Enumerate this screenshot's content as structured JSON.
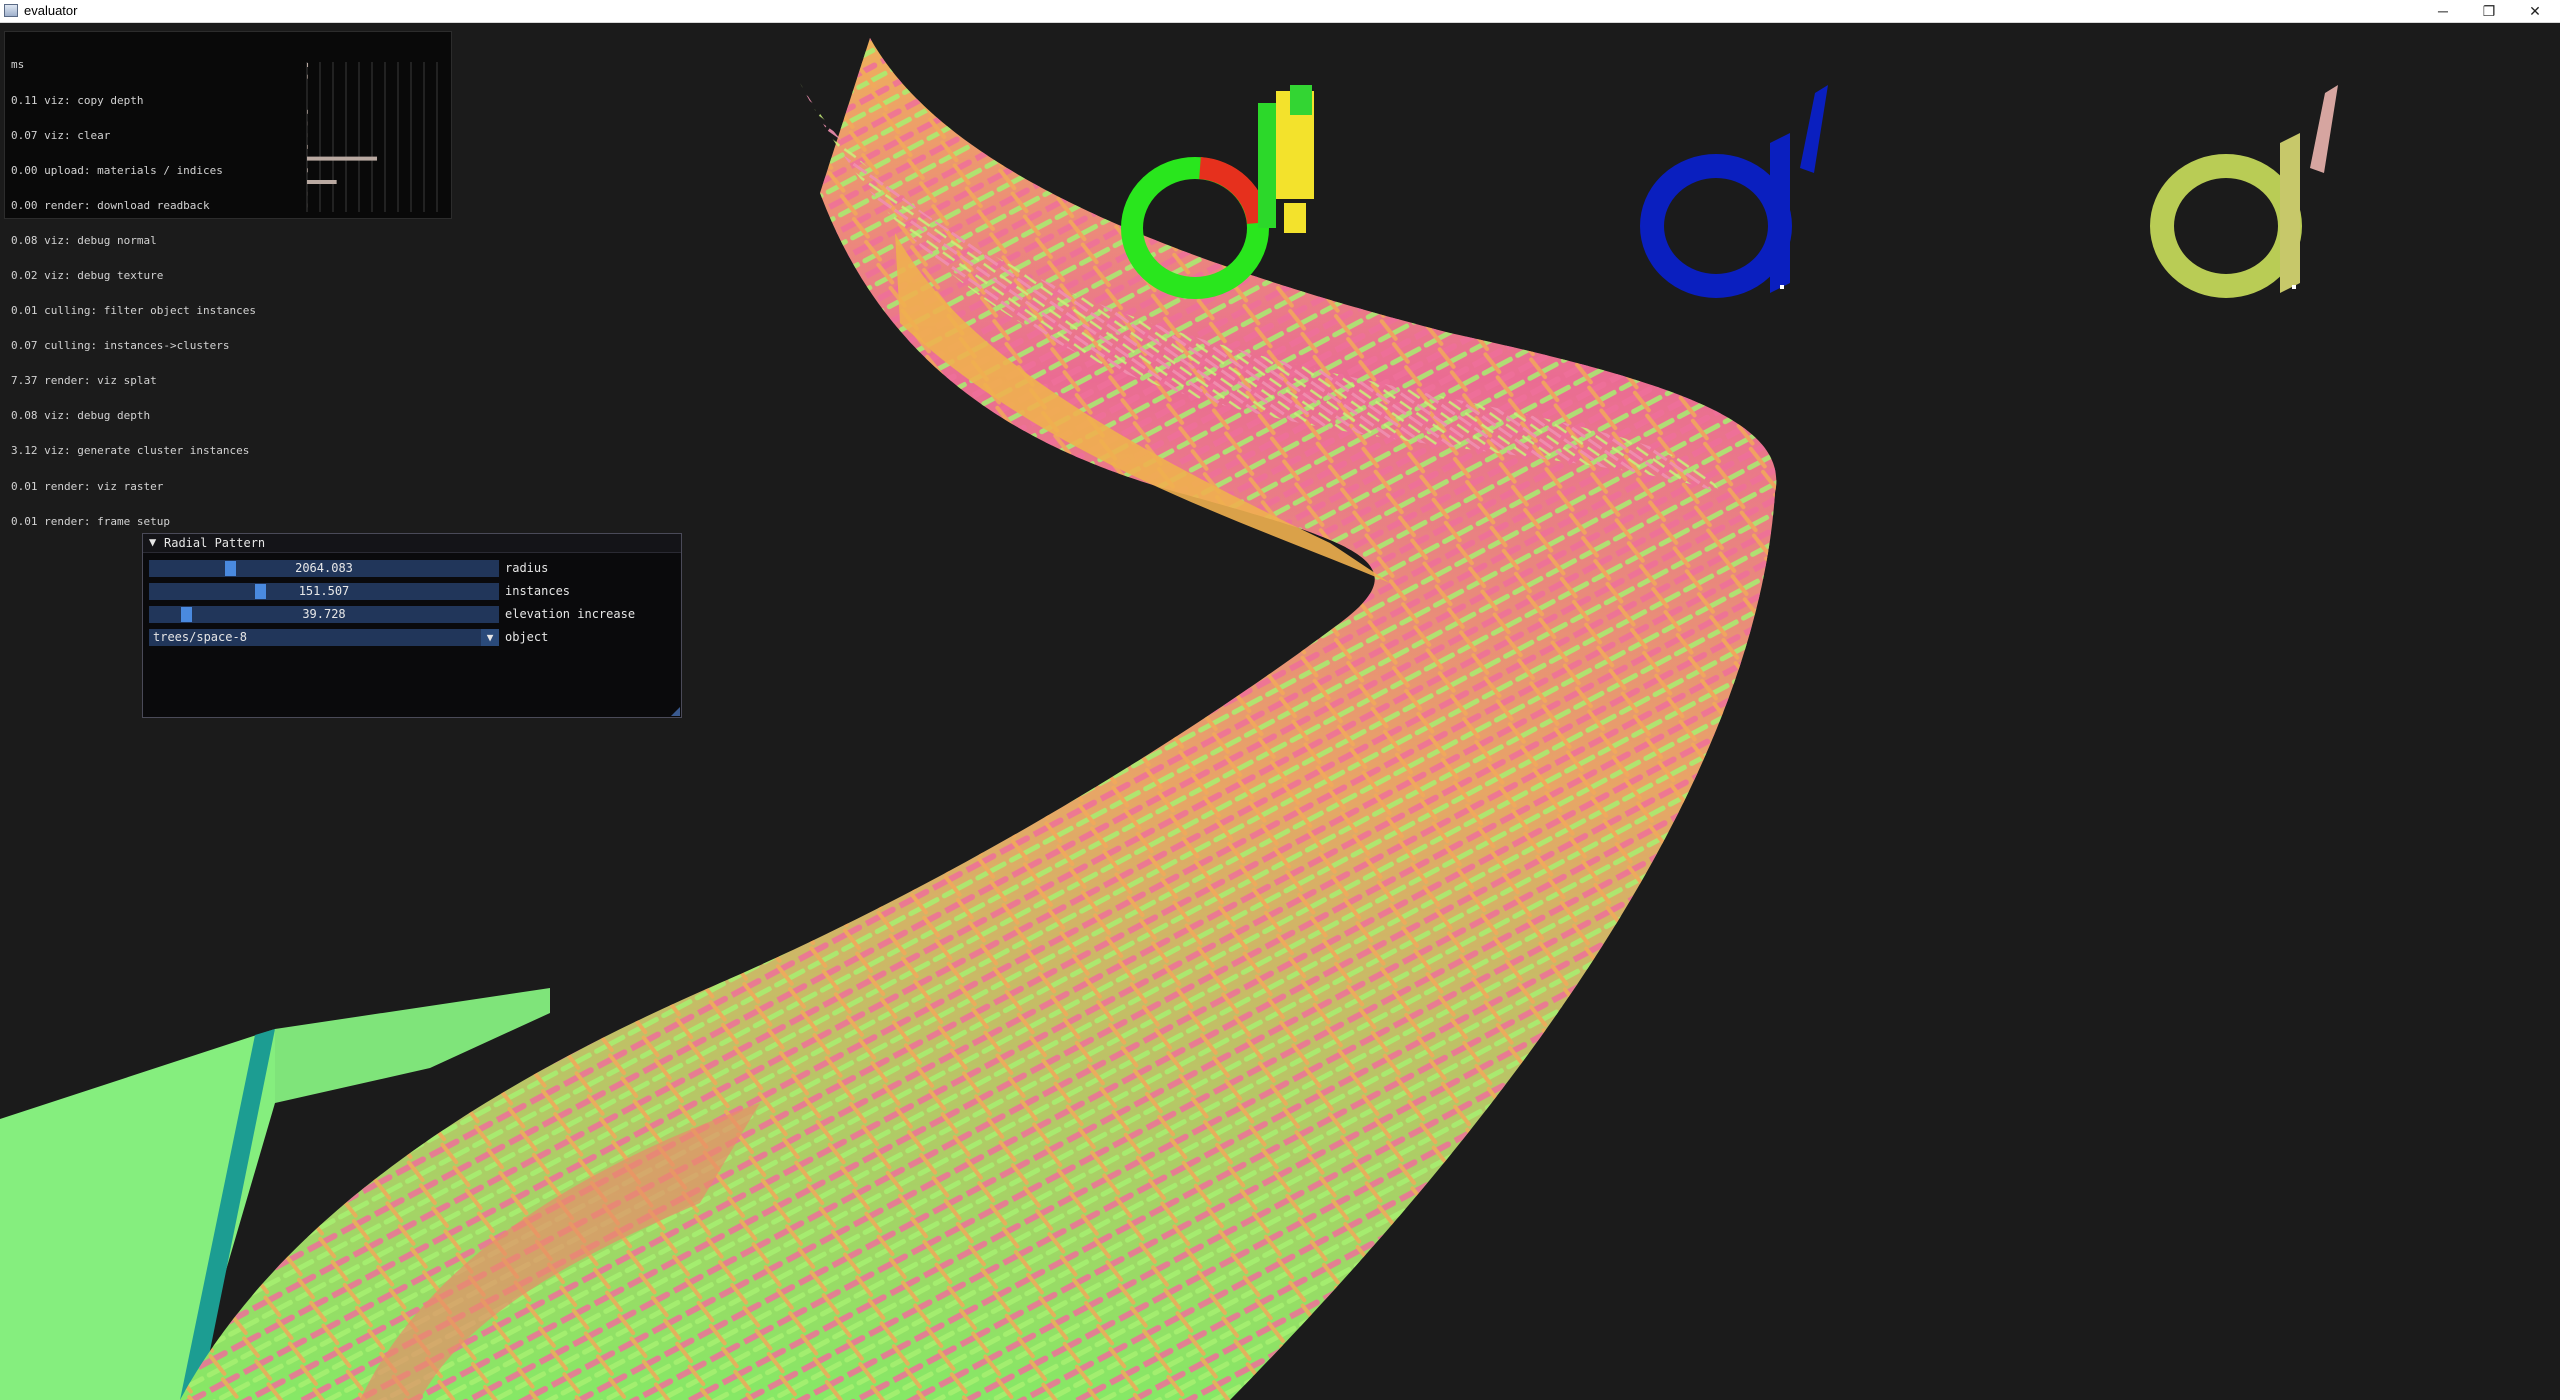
{
  "window": {
    "title": "evaluator",
    "minimize_glyph": "─",
    "maximize_glyph": "❐",
    "close_glyph": "✕"
  },
  "timing": {
    "header": "ms",
    "lines": [
      "0.11 viz: copy depth",
      "0.07 viz: clear",
      "0.00 upload: materials / indices",
      "0.00 render: download readback",
      "0.08 viz: debug normal",
      "0.02 viz: debug texture",
      "0.01 culling: filter object instances",
      "0.07 culling: instances->clusters",
      "7.37 render: viz splat",
      "0.08 viz: debug depth",
      "3.12 viz: generate cluster instances",
      "0.01 render: viz raster",
      "0.01 render: frame setup"
    ],
    "graph_bars": [
      0.11,
      0.07,
      0.0,
      0.0,
      0.08,
      0.02,
      0.01,
      0.07,
      7.37,
      0.08,
      3.12,
      0.01,
      0.01
    ]
  },
  "panel": {
    "title": "Radial Pattern",
    "collapse_glyph": "▼",
    "sliders": [
      {
        "label": "radius",
        "value": "2064.083",
        "fraction": 0.22
      },
      {
        "label": "instances",
        "value": "151.507",
        "fraction": 0.31
      },
      {
        "label": "elevation increase",
        "value": "39.728",
        "fraction": 0.09
      }
    ],
    "combo": {
      "label": "object",
      "value": "trees/space-8",
      "arrow_glyph": "▼"
    }
  },
  "scene": {
    "description_colors": {
      "background": "#1b1b1b",
      "green": "#7dea6a",
      "pink": "#e9658e",
      "orange": "#f0b04f",
      "blue": "#0a1fbf"
    }
  }
}
